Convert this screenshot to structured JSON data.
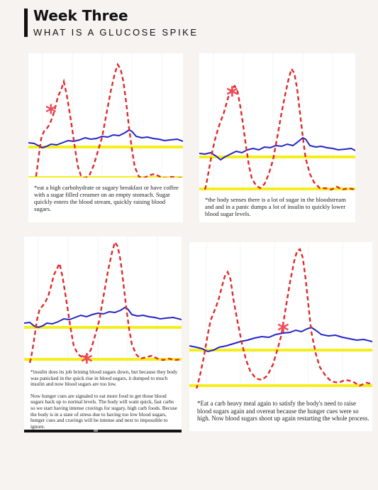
{
  "header": {
    "title": "Week Three",
    "subtitle": "WHAT IS A GLUCOSE SPIKE"
  },
  "colors": {
    "glucose_line": "#e02a2a",
    "insulin_line": "#2323c8",
    "threshold_line": "#f5ee1a",
    "asterisk": "#ef4b5b"
  },
  "panels": [
    {
      "id": "panel-1",
      "asterisk_icon": "asterisk-icon",
      "paragraphs": [
        "*eat a high carbohydrate or sugary breakfast or have coffee with a sugar filled creamer on an empty stomach. Sugar quickly enters the blood stream, quickly raising blood sugars."
      ]
    },
    {
      "id": "panel-2",
      "asterisk_icon": "asterisk-icon",
      "paragraphs": [
        "*the body senses there is a lot of sugar in the bloodstream and and in a panic dumps a lot of insulin to quickly lower blood sugar levels."
      ]
    },
    {
      "id": "panel-3",
      "asterisk_icon": "asterisk-icon",
      "paragraphs": [
        "*insulin does its job brining blood sugars down, but because they body was panicked in the quick rise in blood sugars, it dumped to much insulin and now blood sugars are too low.",
        "Now hunger cues are signaled to eat more food to get those blood sugars back up to normal levels. The body will want quick, fast carbs so we start having intense cravings for sugary, high carb foods. Becuse the body is in a state of stress due to having too low blood sugars, hunger cues and cravings will be intense and next to impossible to ignore."
      ]
    },
    {
      "id": "panel-4",
      "asterisk_icon": "asterisk-icon",
      "paragraphs": [
        "*Eat a carb heavy meal again to satisfy the body's need to raise blood sugars again and overeat because the hunger cues were so high. Now blood sugars shoot up again restarting the whole process."
      ]
    }
  ]
}
